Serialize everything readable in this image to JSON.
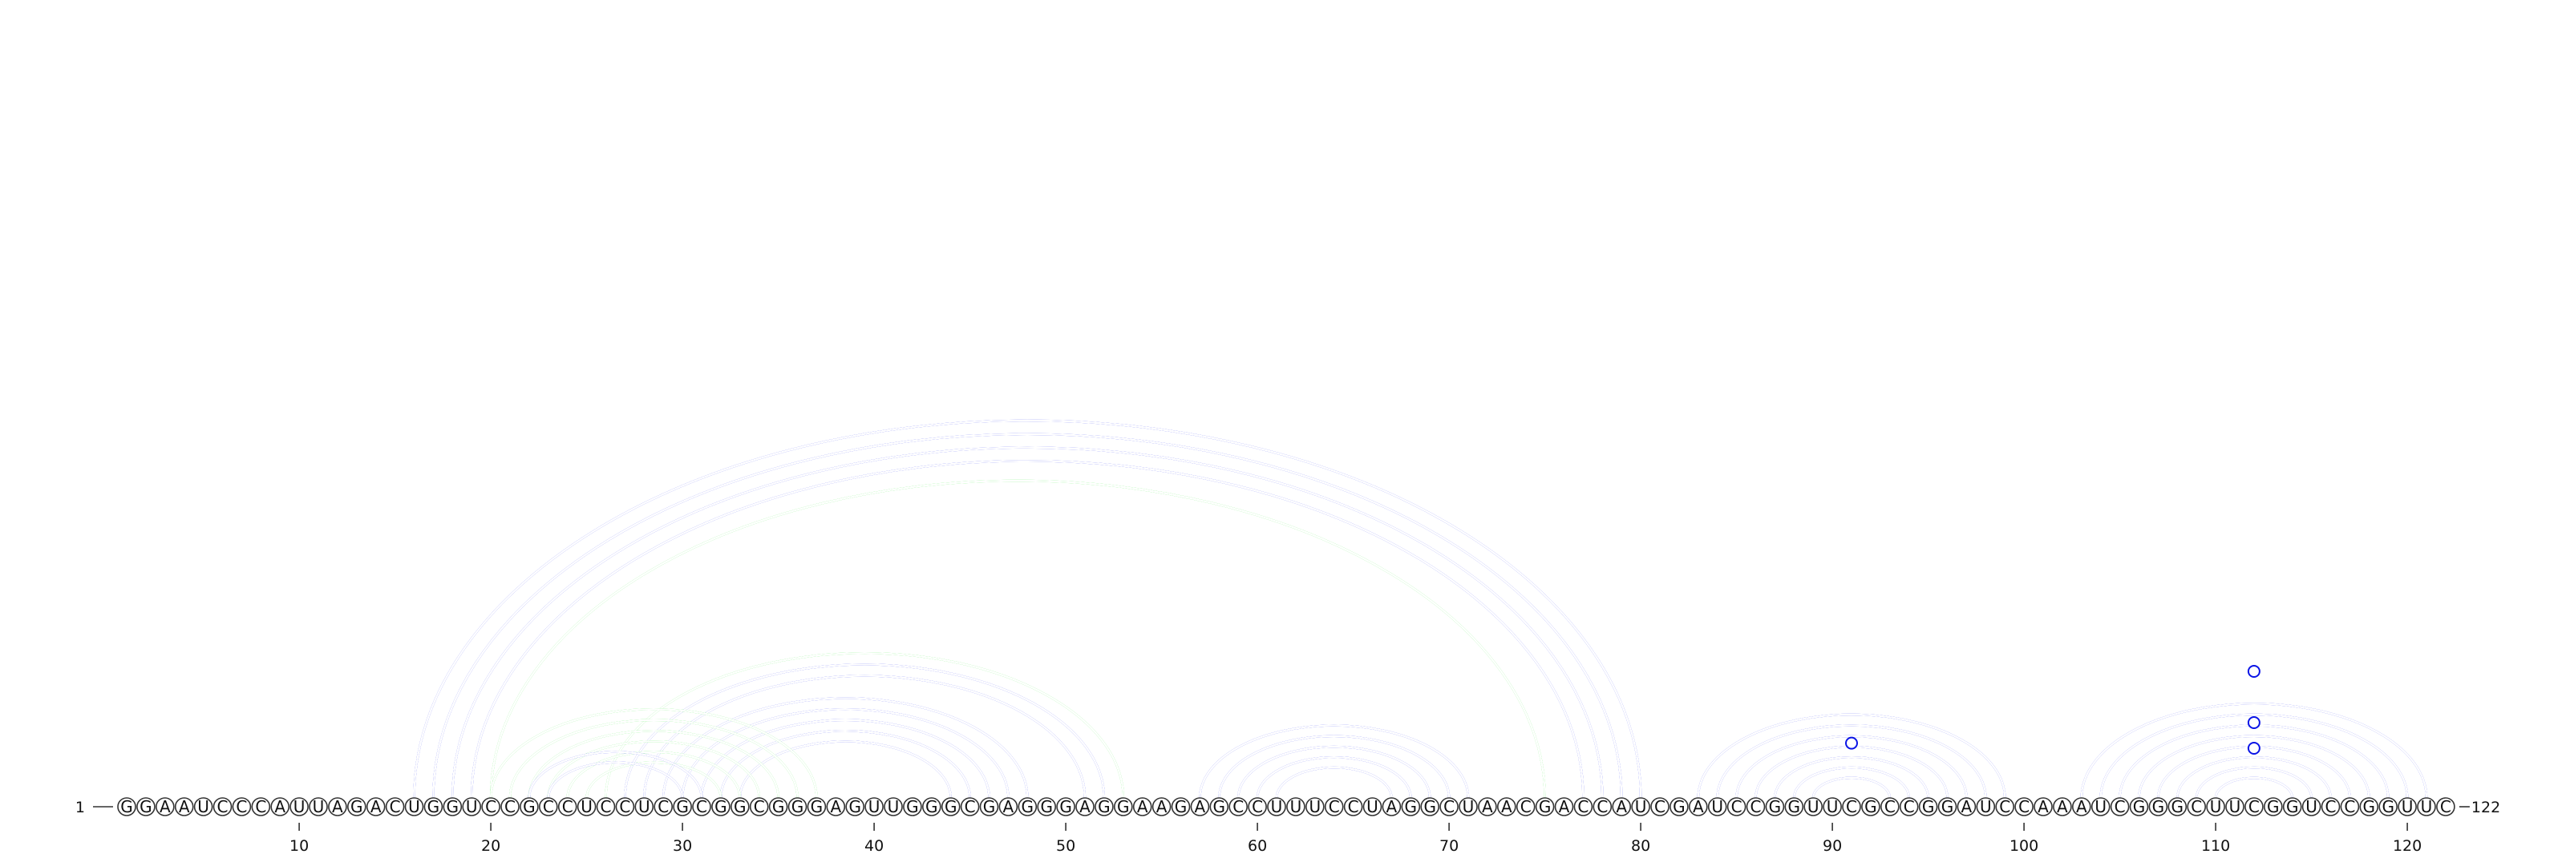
{
  "chart_data": {
    "type": "arc-diagram",
    "title": "",
    "sequence": "GGAAUCCCAUUAGACUGGUCCGCCUCCUCGCGGCGGGAGUUGGGCGAGGGAGGAAGAGCCUUUCCUAGGCUAACGACCAUCGAUCCGGUUCGCCGGAUCCAAAUCGGGCUUCGGUCCGGUUC",
    "length": 122,
    "start_label": "1",
    "end_label": "122",
    "ticks": [
      {
        "pos": 10,
        "label": "10"
      },
      {
        "pos": 20,
        "label": "20"
      },
      {
        "pos": 30,
        "label": "30"
      },
      {
        "pos": 40,
        "label": "40"
      },
      {
        "pos": 50,
        "label": "50"
      },
      {
        "pos": 60,
        "label": "60"
      },
      {
        "pos": 70,
        "label": "70"
      },
      {
        "pos": 80,
        "label": "80"
      },
      {
        "pos": 90,
        "label": "90"
      },
      {
        "pos": 100,
        "label": "100"
      },
      {
        "pos": 110,
        "label": "110"
      },
      {
        "pos": 120,
        "label": "120"
      }
    ],
    "colors": {
      "blue": "#0a14e6",
      "green": "#1ee61e"
    },
    "arc_groups": [
      {
        "color": "blue",
        "double": true,
        "pairs": [
          [
            16,
            80
          ],
          [
            17,
            79
          ],
          [
            18,
            78
          ],
          [
            19,
            77
          ]
        ]
      },
      {
        "color": "green",
        "double": true,
        "pairs": [
          [
            20,
            75
          ]
        ]
      },
      {
        "color": "green",
        "double": true,
        "pairs": [
          [
            26,
            53
          ]
        ]
      },
      {
        "color": "blue",
        "double": true,
        "pairs": [
          [
            27,
            52
          ],
          [
            28,
            51
          ]
        ]
      },
      {
        "color": "blue",
        "double": true,
        "pairs": [
          [
            29,
            48
          ],
          [
            30,
            47
          ],
          [
            31,
            46
          ],
          [
            32,
            45
          ],
          [
            33,
            44
          ]
        ]
      },
      {
        "color": "green",
        "double": true,
        "pairs": [
          [
            20,
            37
          ],
          [
            21,
            36
          ],
          [
            22,
            35
          ],
          [
            23,
            34
          ],
          [
            24,
            33
          ],
          [
            25,
            32
          ]
        ]
      },
      {
        "color": "blue",
        "double": true,
        "pairs": [
          [
            22,
            31
          ],
          [
            23,
            30
          ]
        ]
      },
      {
        "color": "blue",
        "double": true,
        "pairs": [
          [
            57,
            71
          ],
          [
            58,
            70
          ],
          [
            59,
            69
          ],
          [
            60,
            68
          ],
          [
            61,
            67
          ]
        ]
      },
      {
        "color": "blue",
        "double": true,
        "pairs": [
          [
            83,
            99
          ],
          [
            84,
            98
          ],
          [
            85,
            97
          ],
          [
            86,
            96
          ],
          [
            87,
            95
          ],
          [
            88,
            94
          ],
          [
            89,
            93
          ]
        ]
      },
      {
        "color": "blue",
        "double": true,
        "pairs": [
          [
            103,
            121
          ],
          [
            104,
            120
          ],
          [
            105,
            119
          ],
          [
            106,
            118
          ],
          [
            107,
            117
          ],
          [
            108,
            116
          ],
          [
            109,
            115
          ],
          [
            110,
            114
          ]
        ]
      }
    ],
    "markers": [
      {
        "pos": 91,
        "level": 0.3,
        "color": "blue"
      },
      {
        "pos": 112,
        "level": 0.25,
        "color": "blue"
      },
      {
        "pos": 112,
        "level": 0.5,
        "color": "blue"
      },
      {
        "pos": 112,
        "level": 1.0,
        "color": "blue"
      }
    ]
  }
}
